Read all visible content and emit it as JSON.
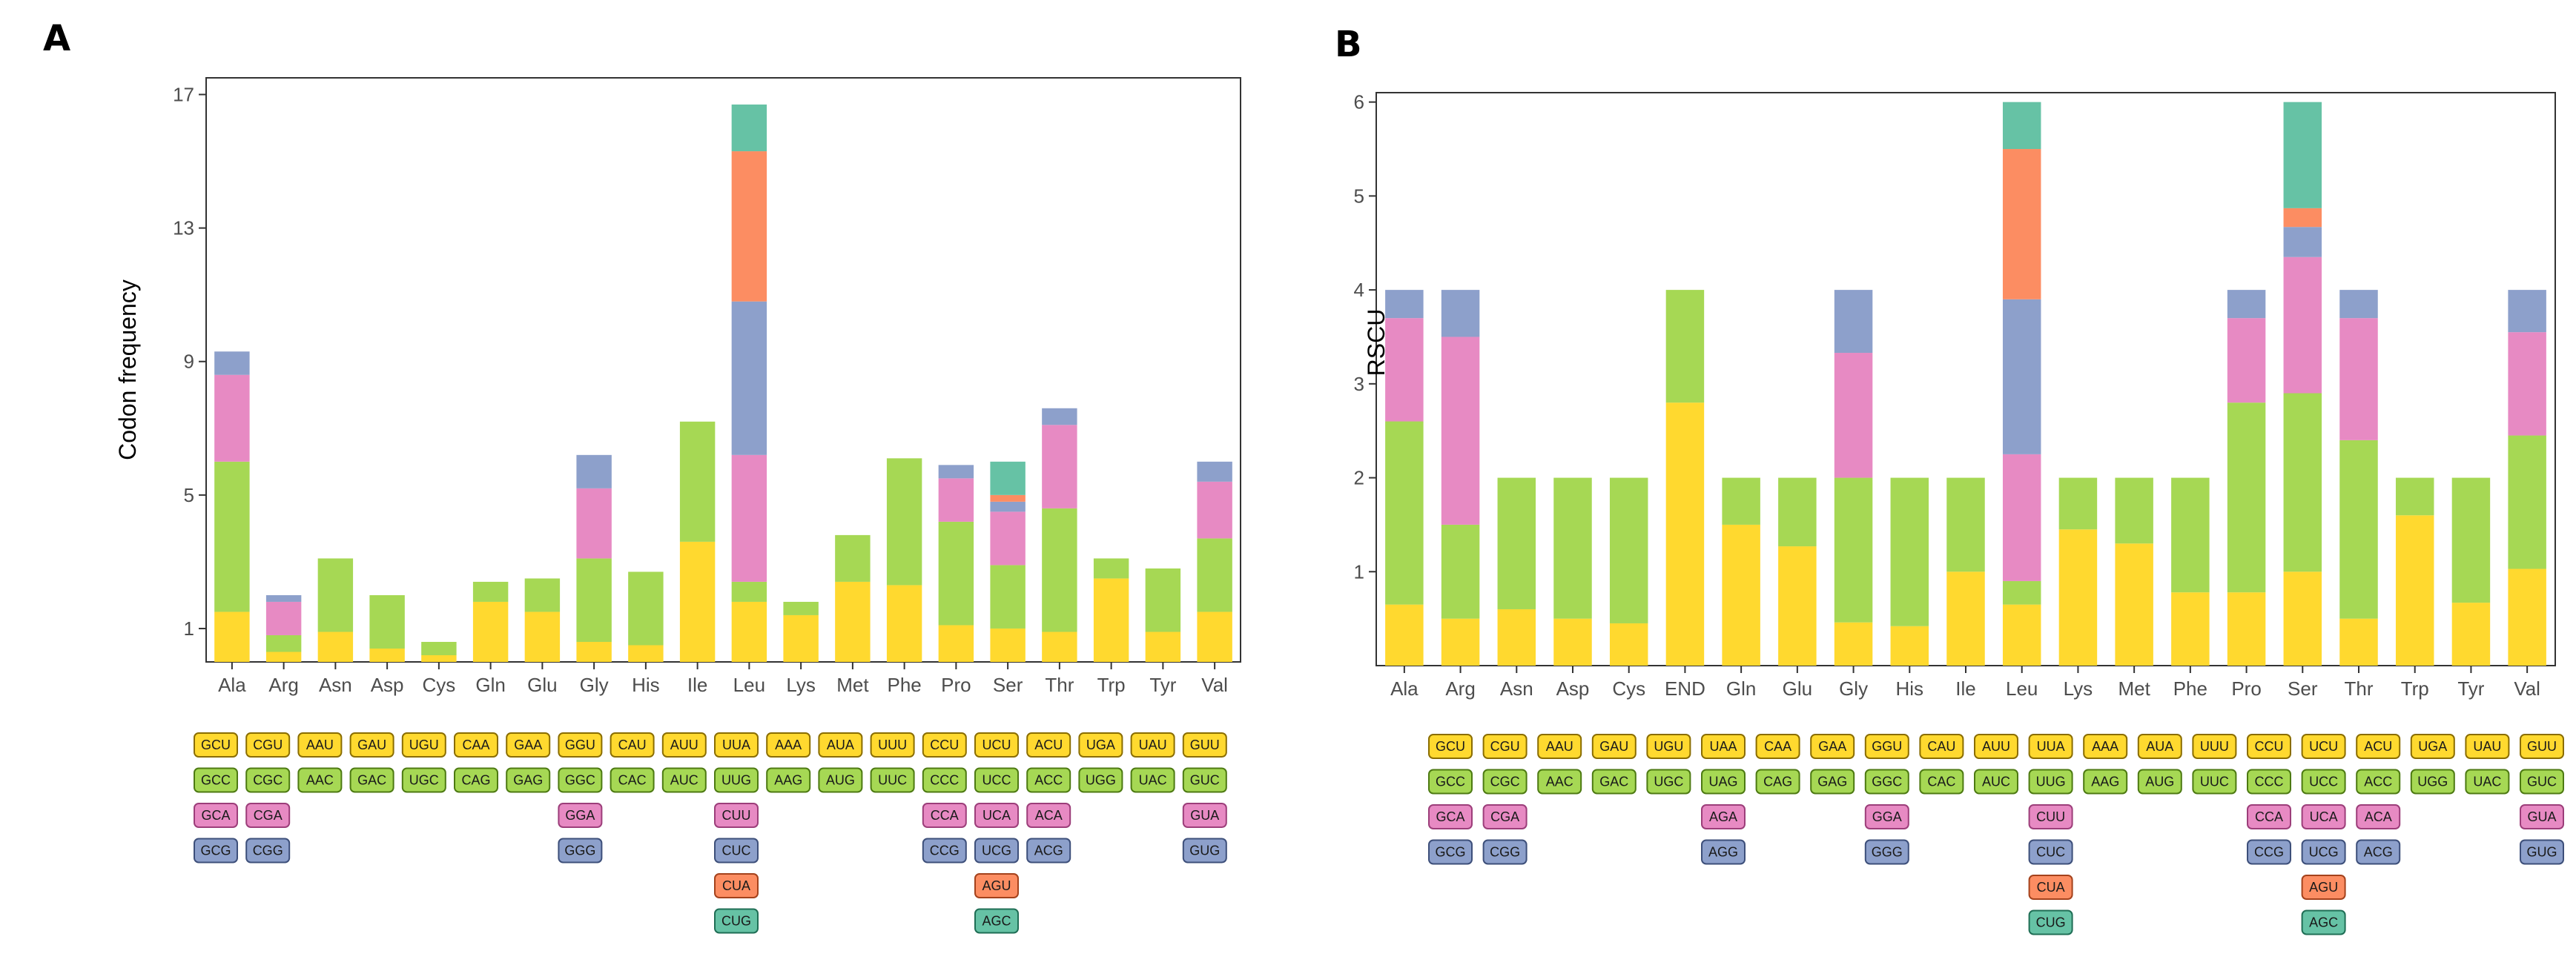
{
  "colors": {
    "c1": "#FFD92F",
    "c2": "#A6D854",
    "c3": "#E78AC3",
    "c4": "#8DA0CB",
    "c5": "#FC8D62",
    "c6": "#66C2A5"
  },
  "chart_data": [
    {
      "type": "bar",
      "stacked": true,
      "panel": "A",
      "ylabel": "Codon frequency",
      "ylim": [
        0,
        17.5
      ],
      "yticks": [
        1,
        5,
        9,
        13,
        17
      ],
      "categories": [
        "Ala",
        "Arg",
        "Asn",
        "Asp",
        "Cys",
        "Gln",
        "Glu",
        "Gly",
        "His",
        "Ile",
        "Leu",
        "Lys",
        "Met",
        "Phe",
        "Pro",
        "Ser",
        "Thr",
        "Trp",
        "Tyr",
        "Val"
      ],
      "stacks": [
        [
          {
            "v": 1.5,
            "c": "c1"
          },
          {
            "v": 4.5,
            "c": "c2"
          },
          {
            "v": 2.6,
            "c": "c3"
          },
          {
            "v": 0.7,
            "c": "c4"
          }
        ],
        [
          {
            "v": 0.3,
            "c": "c1"
          },
          {
            "v": 0.5,
            "c": "c2"
          },
          {
            "v": 1.0,
            "c": "c3"
          },
          {
            "v": 0.2,
            "c": "c4"
          }
        ],
        [
          {
            "v": 0.9,
            "c": "c1"
          },
          {
            "v": 2.2,
            "c": "c2"
          }
        ],
        [
          {
            "v": 0.4,
            "c": "c1"
          },
          {
            "v": 1.6,
            "c": "c2"
          }
        ],
        [
          {
            "v": 0.2,
            "c": "c1"
          },
          {
            "v": 0.4,
            "c": "c2"
          }
        ],
        [
          {
            "v": 1.8,
            "c": "c1"
          },
          {
            "v": 0.6,
            "c": "c2"
          }
        ],
        [
          {
            "v": 1.5,
            "c": "c1"
          },
          {
            "v": 1.0,
            "c": "c2"
          }
        ],
        [
          {
            "v": 0.6,
            "c": "c1"
          },
          {
            "v": 2.5,
            "c": "c2"
          },
          {
            "v": 2.1,
            "c": "c3"
          },
          {
            "v": 1.0,
            "c": "c4"
          }
        ],
        [
          {
            "v": 0.5,
            "c": "c1"
          },
          {
            "v": 2.2,
            "c": "c2"
          }
        ],
        [
          {
            "v": 3.6,
            "c": "c1"
          },
          {
            "v": 3.6,
            "c": "c2"
          }
        ],
        [
          {
            "v": 1.8,
            "c": "c1"
          },
          {
            "v": 0.6,
            "c": "c2"
          },
          {
            "v": 3.8,
            "c": "c3"
          },
          {
            "v": 4.6,
            "c": "c4"
          },
          {
            "v": 4.5,
            "c": "c5"
          },
          {
            "v": 1.4,
            "c": "c6"
          }
        ],
        [
          {
            "v": 1.4,
            "c": "c1"
          },
          {
            "v": 0.4,
            "c": "c2"
          }
        ],
        [
          {
            "v": 2.4,
            "c": "c1"
          },
          {
            "v": 1.4,
            "c": "c2"
          }
        ],
        [
          {
            "v": 2.3,
            "c": "c1"
          },
          {
            "v": 3.8,
            "c": "c2"
          }
        ],
        [
          {
            "v": 1.1,
            "c": "c1"
          },
          {
            "v": 3.1,
            "c": "c2"
          },
          {
            "v": 1.3,
            "c": "c3"
          },
          {
            "v": 0.4,
            "c": "c4"
          }
        ],
        [
          {
            "v": 1.0,
            "c": "c1"
          },
          {
            "v": 1.9,
            "c": "c2"
          },
          {
            "v": 1.6,
            "c": "c3"
          },
          {
            "v": 0.3,
            "c": "c4"
          },
          {
            "v": 0.2,
            "c": "c5"
          },
          {
            "v": 1.0,
            "c": "c6"
          }
        ],
        [
          {
            "v": 0.9,
            "c": "c1"
          },
          {
            "v": 3.7,
            "c": "c2"
          },
          {
            "v": 2.5,
            "c": "c3"
          },
          {
            "v": 0.5,
            "c": "c4"
          }
        ],
        [
          {
            "v": 2.5,
            "c": "c1"
          },
          {
            "v": 0.6,
            "c": "c2"
          }
        ],
        [
          {
            "v": 0.9,
            "c": "c1"
          },
          {
            "v": 1.9,
            "c": "c2"
          }
        ],
        [
          {
            "v": 1.5,
            "c": "c1"
          },
          {
            "v": 2.2,
            "c": "c2"
          },
          {
            "v": 1.7,
            "c": "c3"
          },
          {
            "v": 0.6,
            "c": "c4"
          }
        ]
      ],
      "codon_table": [
        [
          [
            "GCU",
            "c1"
          ],
          [
            "GCC",
            "c2"
          ],
          [
            "GCA",
            "c3"
          ],
          [
            "GCG",
            "c4"
          ]
        ],
        [
          [
            "CGU",
            "c1"
          ],
          [
            "CGC",
            "c2"
          ],
          [
            "CGA",
            "c3"
          ],
          [
            "CGG",
            "c4"
          ]
        ],
        [
          [
            "AAU",
            "c1"
          ],
          [
            "AAC",
            "c2"
          ]
        ],
        [
          [
            "GAU",
            "c1"
          ],
          [
            "GAC",
            "c2"
          ]
        ],
        [
          [
            "UGU",
            "c1"
          ],
          [
            "UGC",
            "c2"
          ]
        ],
        [
          [
            "CAA",
            "c1"
          ],
          [
            "CAG",
            "c2"
          ]
        ],
        [
          [
            "GAA",
            "c1"
          ],
          [
            "GAG",
            "c2"
          ]
        ],
        [
          [
            "GGU",
            "c1"
          ],
          [
            "GGC",
            "c2"
          ],
          [
            "GGA",
            "c3"
          ],
          [
            "GGG",
            "c4"
          ]
        ],
        [
          [
            "CAU",
            "c1"
          ],
          [
            "CAC",
            "c2"
          ]
        ],
        [
          [
            "AUU",
            "c1"
          ],
          [
            "AUC",
            "c2"
          ]
        ],
        [
          [
            "UUA",
            "c1"
          ],
          [
            "UUG",
            "c2"
          ],
          [
            "CUU",
            "c3"
          ],
          [
            "CUC",
            "c4"
          ],
          [
            "CUA",
            "c5"
          ],
          [
            "CUG",
            "c6"
          ]
        ],
        [
          [
            "AAA",
            "c1"
          ],
          [
            "AAG",
            "c2"
          ]
        ],
        [
          [
            "AUA",
            "c1"
          ],
          [
            "AUG",
            "c2"
          ]
        ],
        [
          [
            "UUU",
            "c1"
          ],
          [
            "UUC",
            "c2"
          ]
        ],
        [
          [
            "CCU",
            "c1"
          ],
          [
            "CCC",
            "c2"
          ],
          [
            "CCA",
            "c3"
          ],
          [
            "CCG",
            "c4"
          ]
        ],
        [
          [
            "UCU",
            "c1"
          ],
          [
            "UCC",
            "c2"
          ],
          [
            "UCA",
            "c3"
          ],
          [
            "UCG",
            "c4"
          ],
          [
            "AGU",
            "c5"
          ],
          [
            "AGC",
            "c6"
          ]
        ],
        [
          [
            "ACU",
            "c1"
          ],
          [
            "ACC",
            "c2"
          ],
          [
            "ACA",
            "c3"
          ],
          [
            "ACG",
            "c4"
          ]
        ],
        [
          [
            "UGA",
            "c1"
          ],
          [
            "UGG",
            "c2"
          ]
        ],
        [
          [
            "UAU",
            "c1"
          ],
          [
            "UAC",
            "c2"
          ]
        ],
        [
          [
            "GUU",
            "c1"
          ],
          [
            "GUC",
            "c2"
          ],
          [
            "GUA",
            "c3"
          ],
          [
            "GUG",
            "c4"
          ]
        ]
      ]
    },
    {
      "type": "bar",
      "stacked": true,
      "panel": "B",
      "ylabel": "RSCU",
      "ylim": [
        0,
        6.1
      ],
      "yticks": [
        1,
        2,
        3,
        4,
        5,
        6
      ],
      "categories": [
        "Ala",
        "Arg",
        "Asn",
        "Asp",
        "Cys",
        "END",
        "Gln",
        "Glu",
        "Gly",
        "His",
        "Ile",
        "Leu",
        "Lys",
        "Met",
        "Phe",
        "Pro",
        "Ser",
        "Thr",
        "Trp",
        "Tyr",
        "Val"
      ],
      "stacks": [
        [
          {
            "v": 0.65,
            "c": "c1"
          },
          {
            "v": 1.95,
            "c": "c2"
          },
          {
            "v": 1.1,
            "c": "c3"
          },
          {
            "v": 0.3,
            "c": "c4"
          }
        ],
        [
          {
            "v": 0.5,
            "c": "c1"
          },
          {
            "v": 1.0,
            "c": "c2"
          },
          {
            "v": 2.0,
            "c": "c3"
          },
          {
            "v": 0.5,
            "c": "c4"
          }
        ],
        [
          {
            "v": 0.6,
            "c": "c1"
          },
          {
            "v": 1.4,
            "c": "c2"
          }
        ],
        [
          {
            "v": 0.5,
            "c": "c1"
          },
          {
            "v": 1.5,
            "c": "c2"
          }
        ],
        [
          {
            "v": 0.45,
            "c": "c1"
          },
          {
            "v": 1.55,
            "c": "c2"
          }
        ],
        [
          {
            "v": 2.8,
            "c": "c1"
          },
          {
            "v": 1.2,
            "c": "c2"
          }
        ],
        [
          {
            "v": 1.5,
            "c": "c1"
          },
          {
            "v": 0.5,
            "c": "c2"
          }
        ],
        [
          {
            "v": 1.27,
            "c": "c1"
          },
          {
            "v": 0.73,
            "c": "c2"
          }
        ],
        [
          {
            "v": 0.46,
            "c": "c1"
          },
          {
            "v": 1.54,
            "c": "c2"
          },
          {
            "v": 1.33,
            "c": "c3"
          },
          {
            "v": 0.67,
            "c": "c4"
          }
        ],
        [
          {
            "v": 0.42,
            "c": "c1"
          },
          {
            "v": 1.58,
            "c": "c2"
          }
        ],
        [
          {
            "v": 1.0,
            "c": "c1"
          },
          {
            "v": 1.0,
            "c": "c2"
          }
        ],
        [
          {
            "v": 0.65,
            "c": "c1"
          },
          {
            "v": 0.25,
            "c": "c2"
          },
          {
            "v": 1.35,
            "c": "c3"
          },
          {
            "v": 1.65,
            "c": "c4"
          },
          {
            "v": 1.6,
            "c": "c5"
          },
          {
            "v": 0.5,
            "c": "c6"
          }
        ],
        [
          {
            "v": 1.45,
            "c": "c1"
          },
          {
            "v": 0.55,
            "c": "c2"
          }
        ],
        [
          {
            "v": 1.3,
            "c": "c1"
          },
          {
            "v": 0.7,
            "c": "c2"
          }
        ],
        [
          {
            "v": 0.78,
            "c": "c1"
          },
          {
            "v": 1.22,
            "c": "c2"
          }
        ],
        [
          {
            "v": 0.78,
            "c": "c1"
          },
          {
            "v": 2.02,
            "c": "c2"
          },
          {
            "v": 0.9,
            "c": "c3"
          },
          {
            "v": 0.3,
            "c": "c4"
          }
        ],
        [
          {
            "v": 1.0,
            "c": "c1"
          },
          {
            "v": 1.9,
            "c": "c2"
          },
          {
            "v": 1.45,
            "c": "c3"
          },
          {
            "v": 0.32,
            "c": "c4"
          },
          {
            "v": 0.2,
            "c": "c5"
          },
          {
            "v": 1.13,
            "c": "c6"
          }
        ],
        [
          {
            "v": 0.5,
            "c": "c1"
          },
          {
            "v": 1.9,
            "c": "c2"
          },
          {
            "v": 1.3,
            "c": "c3"
          },
          {
            "v": 0.3,
            "c": "c4"
          }
        ],
        [
          {
            "v": 1.6,
            "c": "c1"
          },
          {
            "v": 0.4,
            "c": "c2"
          }
        ],
        [
          {
            "v": 0.67,
            "c": "c1"
          },
          {
            "v": 1.33,
            "c": "c2"
          }
        ],
        [
          {
            "v": 1.03,
            "c": "c1"
          },
          {
            "v": 1.42,
            "c": "c2"
          },
          {
            "v": 1.1,
            "c": "c3"
          },
          {
            "v": 0.45,
            "c": "c4"
          }
        ]
      ],
      "codon_table": [
        [
          [
            "GCU",
            "c1"
          ],
          [
            "GCC",
            "c2"
          ],
          [
            "GCA",
            "c3"
          ],
          [
            "GCG",
            "c4"
          ]
        ],
        [
          [
            "CGU",
            "c1"
          ],
          [
            "CGC",
            "c2"
          ],
          [
            "CGA",
            "c3"
          ],
          [
            "CGG",
            "c4"
          ]
        ],
        [
          [
            "AAU",
            "c1"
          ],
          [
            "AAC",
            "c2"
          ]
        ],
        [
          [
            "GAU",
            "c1"
          ],
          [
            "GAC",
            "c2"
          ]
        ],
        [
          [
            "UGU",
            "c1"
          ],
          [
            "UGC",
            "c2"
          ]
        ],
        [
          [
            "UAA",
            "c1"
          ],
          [
            "UAG",
            "c2"
          ],
          [
            "AGA",
            "c3"
          ],
          [
            "AGG",
            "c4"
          ]
        ],
        [
          [
            "CAA",
            "c1"
          ],
          [
            "CAG",
            "c2"
          ]
        ],
        [
          [
            "GAA",
            "c1"
          ],
          [
            "GAG",
            "c2"
          ]
        ],
        [
          [
            "GGU",
            "c1"
          ],
          [
            "GGC",
            "c2"
          ],
          [
            "GGA",
            "c3"
          ],
          [
            "GGG",
            "c4"
          ]
        ],
        [
          [
            "CAU",
            "c1"
          ],
          [
            "CAC",
            "c2"
          ]
        ],
        [
          [
            "AUU",
            "c1"
          ],
          [
            "AUC",
            "c2"
          ]
        ],
        [
          [
            "UUA",
            "c1"
          ],
          [
            "UUG",
            "c2"
          ],
          [
            "CUU",
            "c3"
          ],
          [
            "CUC",
            "c4"
          ],
          [
            "CUA",
            "c5"
          ],
          [
            "CUG",
            "c6"
          ]
        ],
        [
          [
            "AAA",
            "c1"
          ],
          [
            "AAG",
            "c2"
          ]
        ],
        [
          [
            "AUA",
            "c1"
          ],
          [
            "AUG",
            "c2"
          ]
        ],
        [
          [
            "UUU",
            "c1"
          ],
          [
            "UUC",
            "c2"
          ]
        ],
        [
          [
            "CCU",
            "c1"
          ],
          [
            "CCC",
            "c2"
          ],
          [
            "CCA",
            "c3"
          ],
          [
            "CCG",
            "c4"
          ]
        ],
        [
          [
            "UCU",
            "c1"
          ],
          [
            "UCC",
            "c2"
          ],
          [
            "UCA",
            "c3"
          ],
          [
            "UCG",
            "c4"
          ],
          [
            "AGU",
            "c5"
          ],
          [
            "AGC",
            "c6"
          ]
        ],
        [
          [
            "ACU",
            "c1"
          ],
          [
            "ACC",
            "c2"
          ],
          [
            "ACA",
            "c3"
          ],
          [
            "ACG",
            "c4"
          ]
        ],
        [
          [
            "UGA",
            "c1"
          ],
          [
            "UGG",
            "c2"
          ]
        ],
        [
          [
            "UAU",
            "c1"
          ],
          [
            "UAC",
            "c2"
          ]
        ],
        [
          [
            "GUU",
            "c1"
          ],
          [
            "GUC",
            "c2"
          ],
          [
            "GUA",
            "c3"
          ],
          [
            "GUG",
            "c4"
          ]
        ]
      ]
    }
  ]
}
